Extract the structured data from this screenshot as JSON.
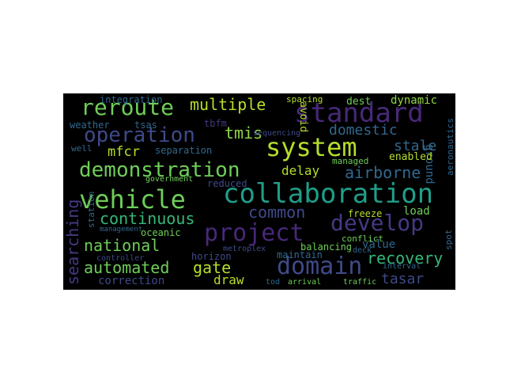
{
  "word_cloud": {
    "palette": {
      "background": "#000000",
      "teal": "#35b779",
      "green": "#6ece58",
      "purple": "#482878",
      "violet": "#443983",
      "blue": "#31688e",
      "slate": "#3e4a89",
      "cyan": "#1f9e89",
      "yellow": "#b5de2b",
      "lime": "#90d743",
      "navy": "#26828e"
    },
    "words": [
      "reroute",
      "standard",
      "multiple",
      "operation",
      "tmis",
      "system",
      "vehicle",
      "collaboration",
      "demonstration",
      "project",
      "develop",
      "domain",
      "searching",
      "national",
      "automated",
      "gate",
      "common",
      "continuous",
      "recovery",
      "value",
      "tasar",
      "domestic",
      "stale",
      "airborne",
      "delay",
      "mfcr",
      "weather",
      "tsas",
      "integration",
      "dest",
      "dynamic",
      "spacing",
      "avoid",
      "ground",
      "aeronautics",
      "enabled",
      "managed",
      "separation",
      "well",
      "government",
      "reduced",
      "load",
      "freeze",
      "conflict",
      "spot",
      "oceanic",
      "horizon",
      "management",
      "controller",
      "correction",
      "draw",
      "maintain",
      "balancing",
      "interval",
      "tod",
      "arrival",
      "traffic",
      "deck",
      "sequencing",
      "tbfm",
      "station",
      "metroplex"
    ]
  }
}
